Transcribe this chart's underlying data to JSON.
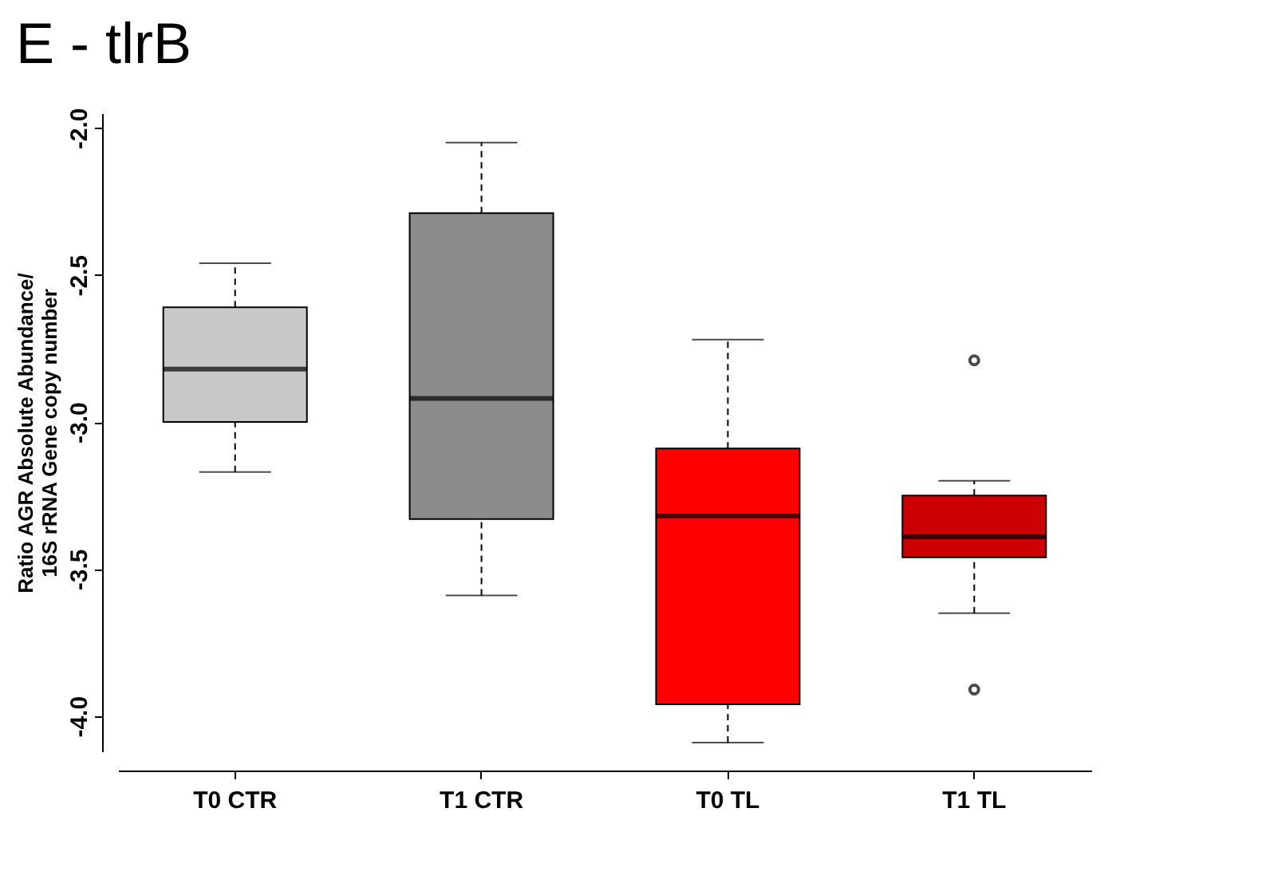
{
  "chart_data": {
    "type": "box",
    "title": "E - tlrB",
    "ylabel": "Ratio AGR Absolute Abundance/\n16S rRNA Gene copy number",
    "categories": [
      "T0 CTR",
      "T1 CTR",
      "T0 TL",
      "T1 TL"
    ],
    "colors": [
      "#c8c8c8",
      "#8c8c8c",
      "#ff0000",
      "#cc0000"
    ],
    "boxes": [
      {
        "low": -3.17,
        "q1": -3.0,
        "median": -2.82,
        "q3": -2.61,
        "high": -2.46
      },
      {
        "low": -3.59,
        "q1": -3.33,
        "median": -2.92,
        "q3": -2.29,
        "high": -2.05
      },
      {
        "low": -4.09,
        "q1": -3.96,
        "median": -3.32,
        "q3": -3.09,
        "high": -2.72
      },
      {
        "low": -3.65,
        "q1": -3.46,
        "median": -3.39,
        "q3": -3.25,
        "high": -3.2,
        "outliers": [
          -2.79,
          -3.91
        ]
      }
    ],
    "ylim": [
      -4.12,
      -1.95
    ],
    "yticks": [
      {
        "value": -4.0,
        "label": "-4.0"
      },
      {
        "value": -3.5,
        "label": "-3.5"
      },
      {
        "value": -3.0,
        "label": "-3.0"
      },
      {
        "value": -2.5,
        "label": "-2.5"
      },
      {
        "value": -2.0,
        "label": "-2.0"
      }
    ],
    "grid": false
  }
}
